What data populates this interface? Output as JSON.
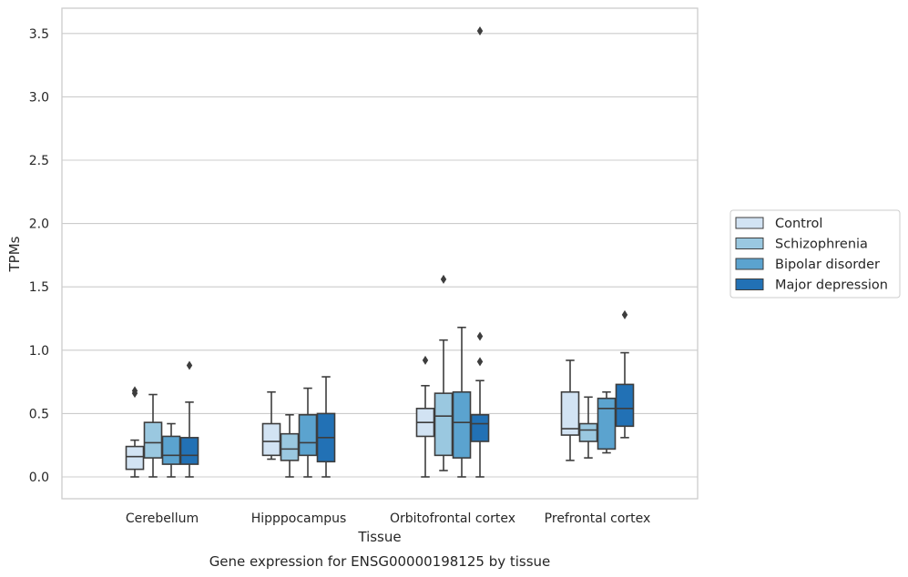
{
  "caption": "Gene expression for ENSG00000198125 by tissue",
  "colors": {
    "Control": "#d2e3f3",
    "Schizophrenia": "#9ac8e0",
    "Bipolar disorder": "#5ba3cf",
    "Major depression": "#2271b5",
    "edge": "#3d3d3d",
    "grid": "#cccccc",
    "frame": "#cccccc"
  },
  "chart_data": {
    "type": "box",
    "xlabel": "Tissue",
    "ylabel": "TPMs",
    "ylim": [
      -0.17,
      3.7
    ],
    "yticks": [
      0.0,
      0.5,
      1.0,
      1.5,
      2.0,
      2.5,
      3.0,
      3.5
    ],
    "yticklabels": [
      "0.0",
      "0.5",
      "1.0",
      "1.5",
      "2.0",
      "2.5",
      "3.0",
      "3.5"
    ],
    "grid": "horizontal",
    "legend_position": "right",
    "categories": [
      "Cerebellum",
      "Hipppocampus",
      "Orbitofrontal cortex",
      "Prefrontal cortex"
    ],
    "series": [
      {
        "name": "Control",
        "boxes": [
          {
            "whislo": 0.0,
            "q1": 0.06,
            "med": 0.16,
            "q3": 0.24,
            "whishi": 0.29,
            "fliers": [
              0.66,
              0.68
            ]
          },
          {
            "whislo": 0.14,
            "q1": 0.17,
            "med": 0.28,
            "q3": 0.42,
            "whishi": 0.67,
            "fliers": []
          },
          {
            "whislo": 0.0,
            "q1": 0.32,
            "med": 0.43,
            "q3": 0.54,
            "whishi": 0.72,
            "fliers": [
              0.92
            ]
          },
          {
            "whislo": 0.13,
            "q1": 0.33,
            "med": 0.38,
            "q3": 0.67,
            "whishi": 0.92,
            "fliers": []
          }
        ]
      },
      {
        "name": "Schizophrenia",
        "boxes": [
          {
            "whislo": 0.0,
            "q1": 0.15,
            "med": 0.27,
            "q3": 0.43,
            "whishi": 0.65,
            "fliers": []
          },
          {
            "whislo": 0.0,
            "q1": 0.13,
            "med": 0.22,
            "q3": 0.34,
            "whishi": 0.49,
            "fliers": []
          },
          {
            "whislo": 0.05,
            "q1": 0.17,
            "med": 0.48,
            "q3": 0.66,
            "whishi": 1.08,
            "fliers": [
              1.56
            ]
          },
          {
            "whislo": 0.15,
            "q1": 0.28,
            "med": 0.37,
            "q3": 0.42,
            "whishi": 0.63,
            "fliers": []
          }
        ]
      },
      {
        "name": "Bipolar disorder",
        "boxes": [
          {
            "whislo": 0.0,
            "q1": 0.1,
            "med": 0.17,
            "q3": 0.32,
            "whishi": 0.42,
            "fliers": []
          },
          {
            "whislo": 0.0,
            "q1": 0.17,
            "med": 0.27,
            "q3": 0.49,
            "whishi": 0.7,
            "fliers": []
          },
          {
            "whislo": 0.0,
            "q1": 0.15,
            "med": 0.43,
            "q3": 0.67,
            "whishi": 1.18,
            "fliers": []
          },
          {
            "whislo": 0.19,
            "q1": 0.22,
            "med": 0.54,
            "q3": 0.62,
            "whishi": 0.67,
            "fliers": []
          }
        ]
      },
      {
        "name": "Major depression",
        "boxes": [
          {
            "whislo": 0.0,
            "q1": 0.1,
            "med": 0.17,
            "q3": 0.31,
            "whishi": 0.59,
            "fliers": [
              0.88
            ]
          },
          {
            "whislo": 0.0,
            "q1": 0.12,
            "med": 0.31,
            "q3": 0.5,
            "whishi": 0.79,
            "fliers": []
          },
          {
            "whislo": 0.0,
            "q1": 0.28,
            "med": 0.42,
            "q3": 0.49,
            "whishi": 0.76,
            "fliers": [
              0.91,
              1.11,
              3.52
            ]
          },
          {
            "whislo": 0.31,
            "q1": 0.4,
            "med": 0.54,
            "q3": 0.73,
            "whishi": 0.98,
            "fliers": [
              1.28
            ]
          }
        ]
      }
    ]
  }
}
